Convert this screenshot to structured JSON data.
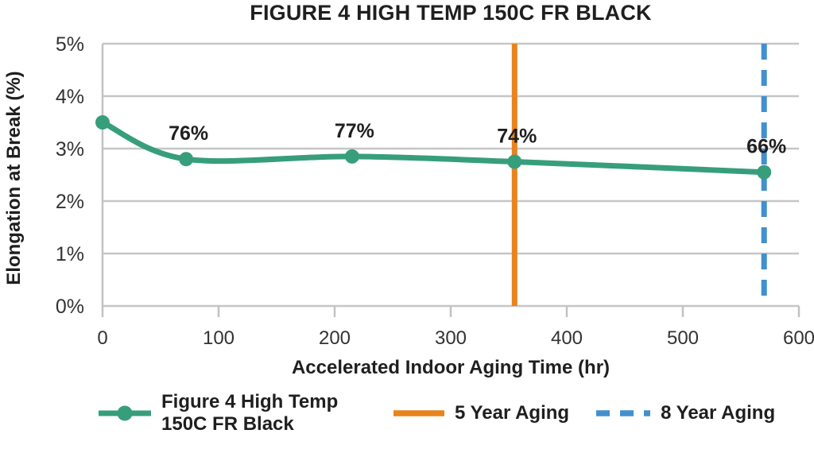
{
  "chart_data": {
    "type": "line",
    "title": "FIGURE 4 HIGH TEMP 150C FR BLACK",
    "xlabel": "Accelerated Indoor Aging Time (hr)",
    "ylabel": "Elongation at Break (%)",
    "xlim": [
      0,
      600
    ],
    "ylim": [
      0,
      5
    ],
    "x_ticks": [
      0,
      100,
      200,
      300,
      400,
      500,
      600
    ],
    "y_ticks": [
      "0%",
      "1%",
      "2%",
      "3%",
      "4%",
      "5%"
    ],
    "grid": "horizontal",
    "series": [
      {
        "name": "Figure 4 High Temp 150C FR Black",
        "color": "#379e7b",
        "marker": "circle",
        "x": [
          0,
          72,
          215,
          355,
          570
        ],
        "y": [
          3.5,
          2.8,
          2.85,
          2.75,
          2.55
        ],
        "point_labels": [
          "",
          "76%",
          "77%",
          "74%",
          "66%"
        ]
      }
    ],
    "vlines": [
      {
        "x": 355,
        "label": "5 Year Aging",
        "color": "#e8831d",
        "style": "solid"
      },
      {
        "x": 570,
        "label": "8 Year Aging",
        "color": "#4290cd",
        "style": "dashed"
      }
    ],
    "legend": {
      "position": "bottom",
      "entries": [
        {
          "label": "Figure 4 High Temp 150C FR Black",
          "swatch": "line-marker",
          "color": "#379e7b"
        },
        {
          "label": "5 Year Aging",
          "swatch": "line",
          "color": "#e8831d"
        },
        {
          "label": "8 Year Aging",
          "swatch": "dashed-line",
          "color": "#4290cd"
        }
      ]
    },
    "colors": {
      "background": "#ffffff",
      "text": "#1f1f1f",
      "tick_text": "#333333",
      "grid": "#c6c6c6",
      "axis": "#c2c2c2"
    }
  }
}
